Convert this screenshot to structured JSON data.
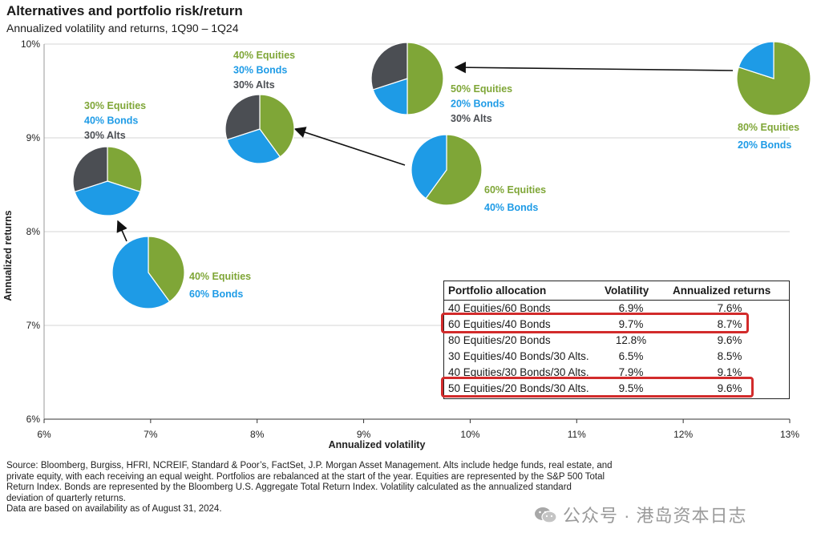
{
  "chart_data": {
    "type": "scatter",
    "title": "Alternatives and portfolio risk/return",
    "subtitle": "Annualized volatility and returns, 1Q90 – 1Q24",
    "xlabel": "Annualized volatility",
    "ylabel": "Annualized returns",
    "xlim": [
      6,
      13
    ],
    "ylim": [
      6,
      10
    ],
    "x_ticks": [
      "6%",
      "7%",
      "8%",
      "9%",
      "10%",
      "11%",
      "12%",
      "13%"
    ],
    "y_ticks": [
      "6%",
      "7%",
      "8%",
      "9%",
      "10%"
    ],
    "grid": "horizontal",
    "colors": {
      "equities": "#7fa637",
      "bonds": "#1e9be6",
      "alts": "#4b4e53",
      "arrow": "#111111",
      "highlight": "#d22b2b"
    },
    "portfolios": [
      {
        "id": "p4060",
        "x": 6.9,
        "y": 7.6,
        "slices": [
          {
            "name": "Equities",
            "pct": 40
          },
          {
            "name": "Bonds",
            "pct": 60
          }
        ],
        "labels": [
          "40% Equities",
          "60% Bonds"
        ]
      },
      {
        "id": "p6040",
        "x": 9.7,
        "y": 8.7,
        "slices": [
          {
            "name": "Equities",
            "pct": 60
          },
          {
            "name": "Bonds",
            "pct": 40
          }
        ],
        "labels": [
          "60% Equities",
          "40% Bonds"
        ]
      },
      {
        "id": "p8020",
        "x": 12.8,
        "y": 9.6,
        "slices": [
          {
            "name": "Equities",
            "pct": 80
          },
          {
            "name": "Bonds",
            "pct": 20
          }
        ],
        "labels": [
          "80% Equities",
          "20% Bonds"
        ]
      },
      {
        "id": "p304030",
        "x": 6.5,
        "y": 8.5,
        "slices": [
          {
            "name": "Equities",
            "pct": 30
          },
          {
            "name": "Bonds",
            "pct": 40
          },
          {
            "name": "Alts",
            "pct": 30
          }
        ],
        "labels": [
          "30% Equities",
          "40% Bonds",
          "30% Alts"
        ]
      },
      {
        "id": "p403030",
        "x": 7.9,
        "y": 9.1,
        "slices": [
          {
            "name": "Equities",
            "pct": 40
          },
          {
            "name": "Bonds",
            "pct": 30
          },
          {
            "name": "Alts",
            "pct": 30
          }
        ],
        "labels": [
          "40% Equities",
          "30% Bonds",
          "30% Alts"
        ]
      },
      {
        "id": "p502030",
        "x": 9.5,
        "y": 9.6,
        "slices": [
          {
            "name": "Equities",
            "pct": 50
          },
          {
            "name": "Bonds",
            "pct": 20
          },
          {
            "name": "Alts",
            "pct": 30
          }
        ],
        "labels": [
          "50% Equities",
          "20% Bonds",
          "30% Alts"
        ]
      }
    ],
    "arrows": [
      {
        "from": "p4060",
        "to": "p304030"
      },
      {
        "from": "p6040",
        "to": "p403030"
      },
      {
        "from": "p8020",
        "to": "p502030"
      }
    ],
    "table": {
      "headers": [
        "Portfolio allocation",
        "Volatility",
        "Annualized returns"
      ],
      "rows": [
        {
          "allocation": "40 Equities/60 Bonds",
          "volatility": "6.9%",
          "returns": "7.6%",
          "highlighted": false
        },
        {
          "allocation": "60 Equities/40 Bonds",
          "volatility": "9.7%",
          "returns": "8.7%",
          "highlighted": true
        },
        {
          "allocation": "80 Equities/20 Bonds",
          "volatility": "12.8%",
          "returns": "9.6%",
          "highlighted": false
        },
        {
          "allocation": "30 Equities/40 Bonds/30 Alts.",
          "volatility": "6.5%",
          "returns": "8.5%",
          "highlighted": false
        },
        {
          "allocation": "40 Equities/30 Bonds/30 Alts.",
          "volatility": "7.9%",
          "returns": "9.1%",
          "highlighted": false
        },
        {
          "allocation": "50 Equities/20 Bonds/30 Alts.",
          "volatility": "9.5%",
          "returns": "9.6%",
          "highlighted": true
        }
      ]
    }
  },
  "source_note": {
    "line1": "Source: Bloomberg, Burgiss, HFRI, NCREIF, Standard & Poor’s, FactSet, J.P. Morgan Asset Management. Alts include hedge funds, real estate, and",
    "line2": "private equity, with each receiving an equal weight. Portfolios are rebalanced at the start of the year. Equities are represented by the S&P 500 Total",
    "line3": "Return Index. Bonds are represented by the Bloomberg U.S. Aggregate Total Return Index. Volatility calculated as the annualized standard",
    "line4": "deviation of quarterly returns.",
    "line5": "Data are based on availability as of August 31, 2024."
  },
  "watermark": {
    "icon": "wechat-icon",
    "text": "公众号 · 港岛资本日志"
  }
}
